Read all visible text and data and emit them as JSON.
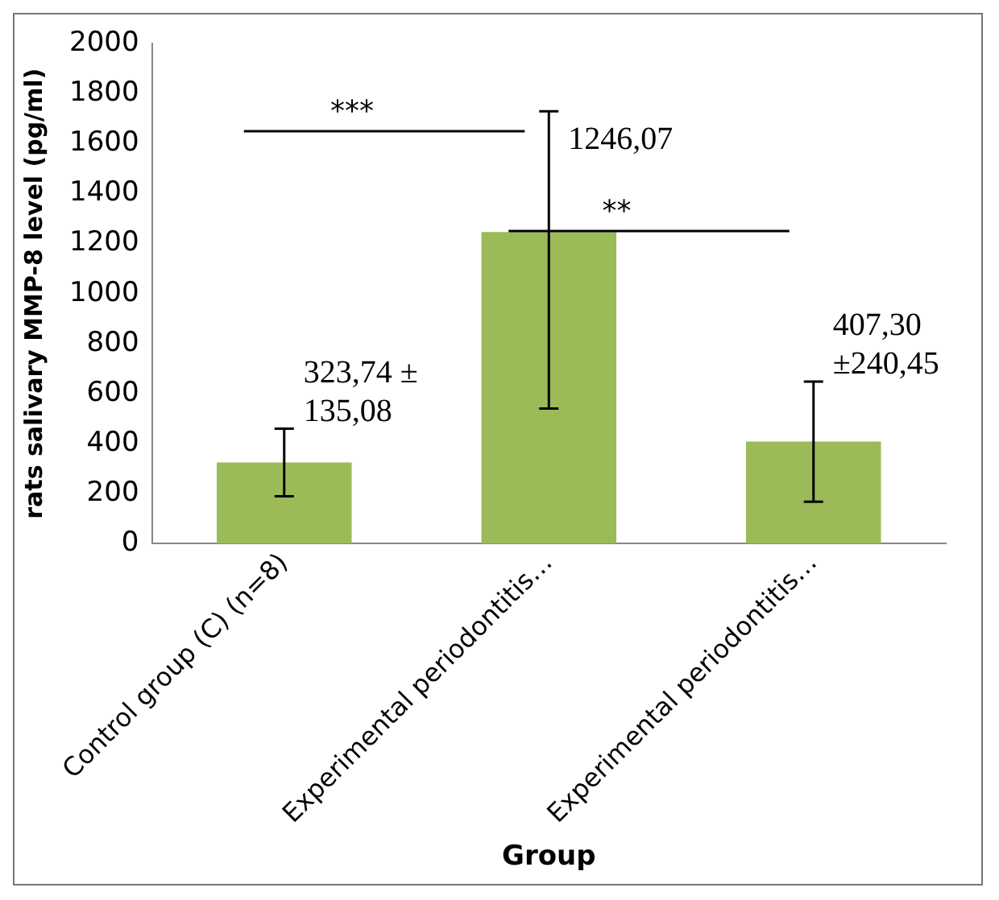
{
  "chart_data": {
    "type": "bar",
    "xlabel": "Group",
    "ylabel": "rats salivary MMP-8 level (pg/ml)",
    "categories": [
      "Control group (C) (n=8)",
      "Experimental periodontitis…",
      "Experimental periodontitis…"
    ],
    "values": [
      323.74,
      1246.07,
      407.3
    ],
    "color": "#9bbb59",
    "errors": [
      135.08,
      [
        540,
        1730
      ],
      240.45
    ],
    "value_labels": [
      "323,74 ± 135,08",
      "1246,07",
      "407,30 ±240,45"
    ],
    "annotations": [
      "***",
      "**"
    ],
    "ylim": [
      0,
      2000
    ],
    "yticks": [
      0,
      200,
      400,
      600,
      800,
      1000,
      1200,
      1400,
      1600,
      1800,
      2000
    ],
    "grid": false,
    "legend": false
  }
}
